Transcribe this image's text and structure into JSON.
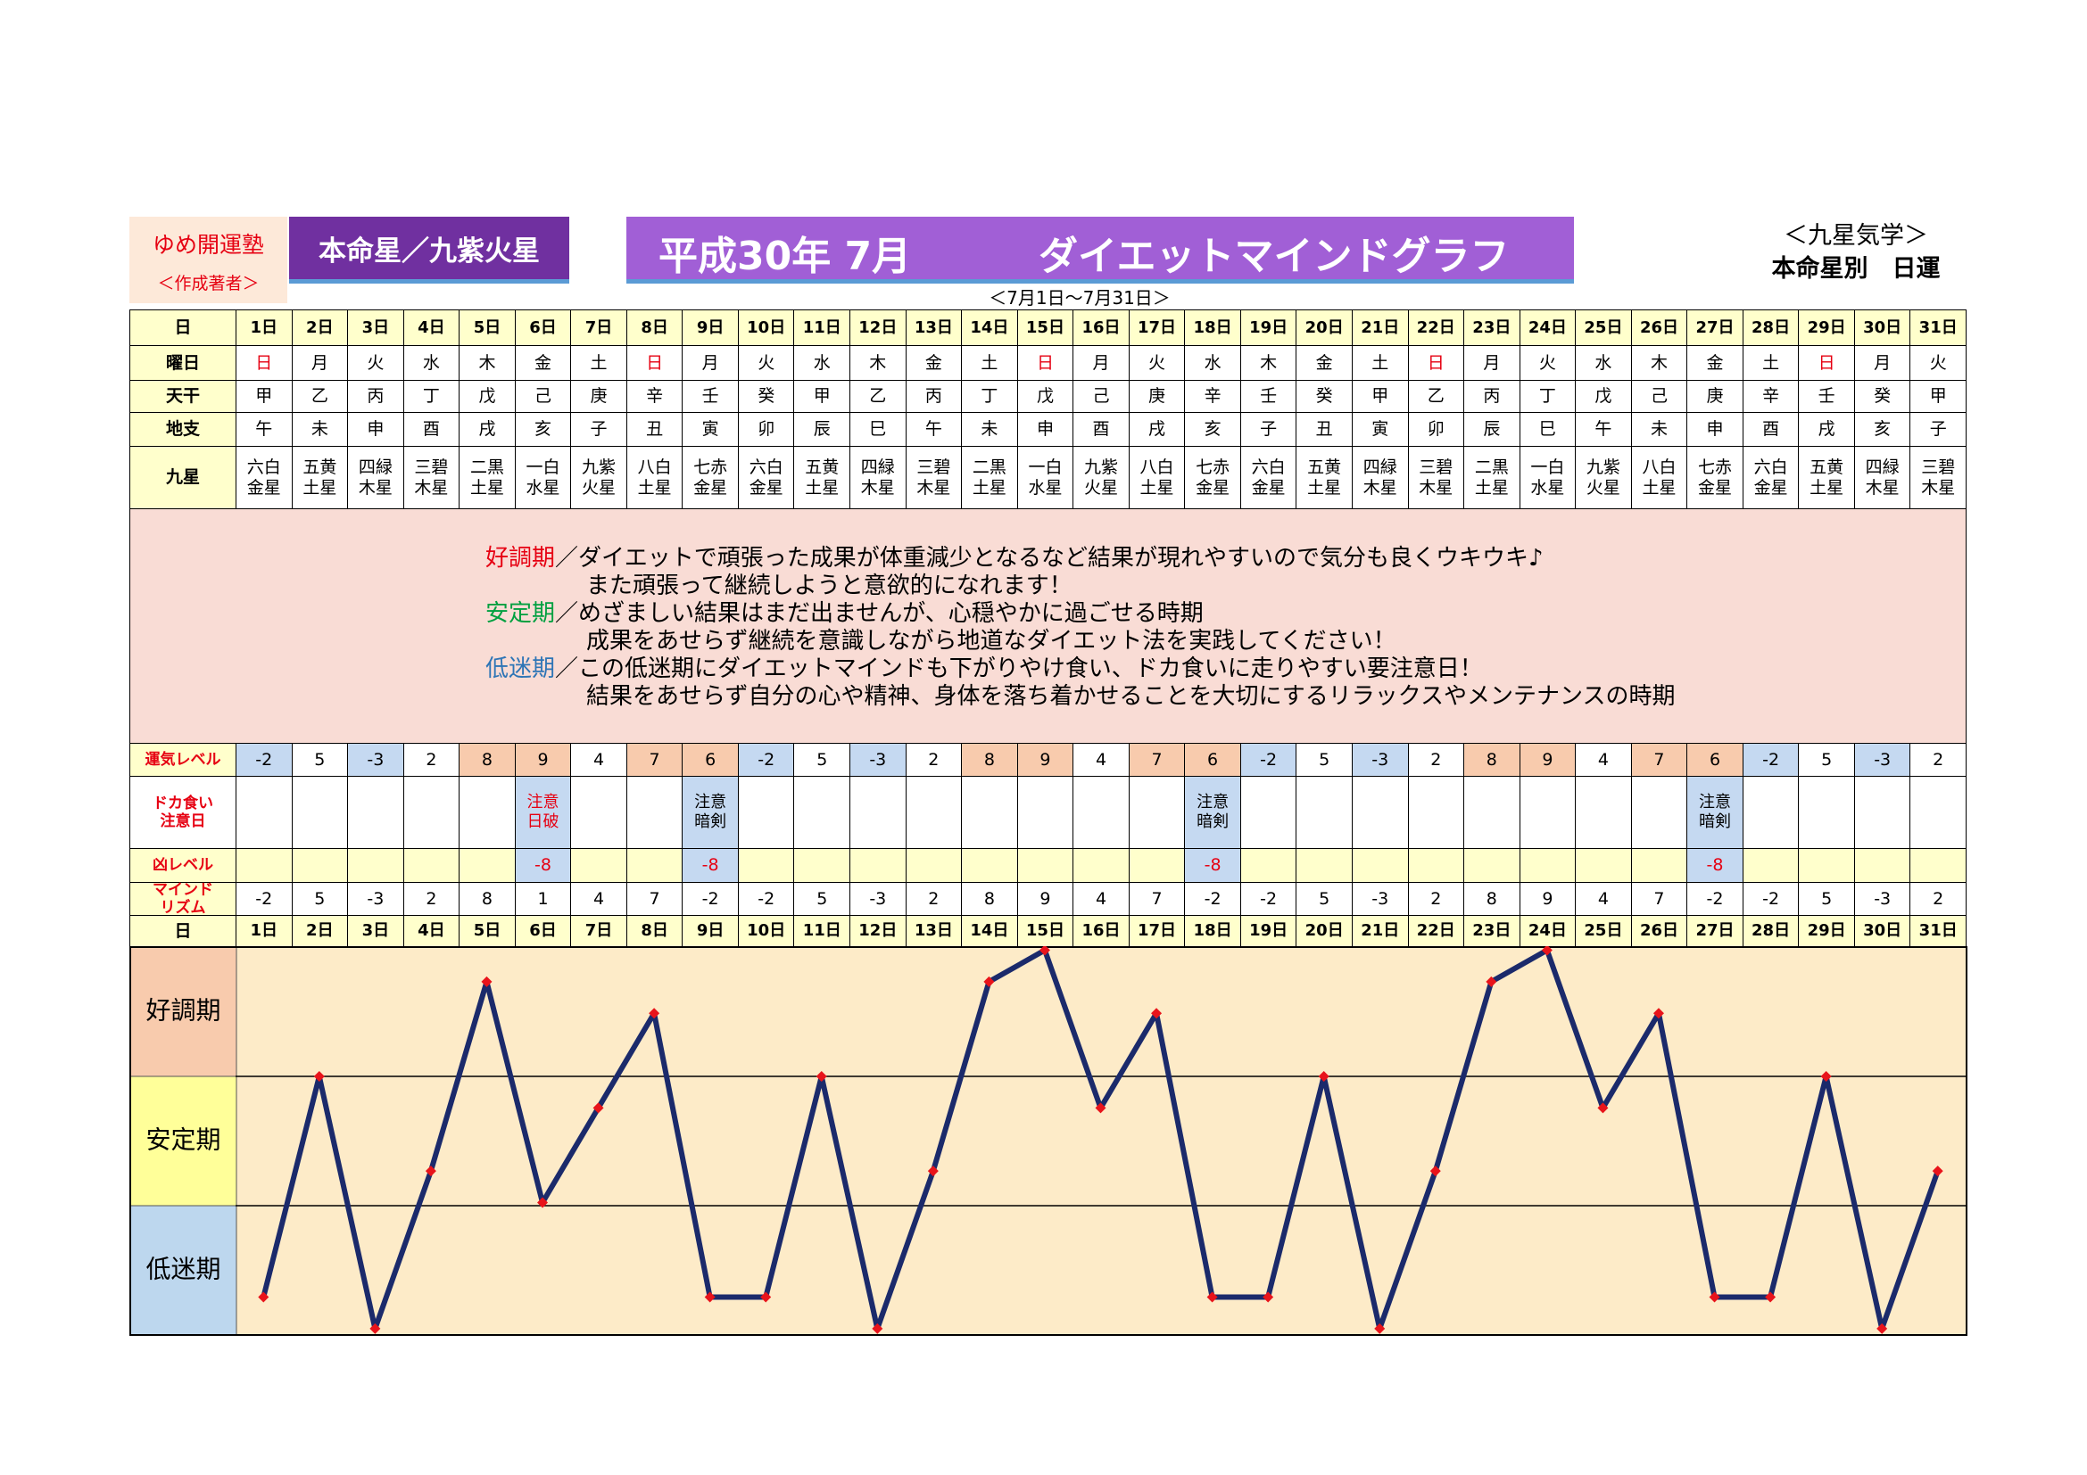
{
  "header": {
    "school": "ゆめ開運塾",
    "author": "＜作成著者＞",
    "honmei": "本命星／九紫火星",
    "title_date": "平成30年 7月",
    "title": "ダイエットマインドグラフ",
    "period": "＜7月1日～7月31日＞",
    "system": "＜九星気学＞",
    "subtitle": "本命星別　日運"
  },
  "table": {
    "labels": {
      "day": "日",
      "weekday": "曜日",
      "kan": "天干",
      "shi": "地支",
      "star": "九星",
      "luck": "運気レベル",
      "doka": [
        "ドカ食い",
        "注意日"
      ],
      "kyo": "凶レベル",
      "mind": [
        "マインド",
        "リズム"
      ]
    },
    "days": [
      "1日",
      "2日",
      "3日",
      "4日",
      "5日",
      "6日",
      "7日",
      "8日",
      "9日",
      "10日",
      "11日",
      "12日",
      "13日",
      "14日",
      "15日",
      "16日",
      "17日",
      "18日",
      "19日",
      "20日",
      "21日",
      "22日",
      "23日",
      "24日",
      "25日",
      "26日",
      "27日",
      "28日",
      "29日",
      "30日",
      "31日"
    ],
    "weekdays": [
      "日",
      "月",
      "火",
      "水",
      "木",
      "金",
      "土",
      "日",
      "月",
      "火",
      "水",
      "木",
      "金",
      "土",
      "日",
      "月",
      "火",
      "水",
      "木",
      "金",
      "土",
      "日",
      "月",
      "火",
      "水",
      "木",
      "金",
      "土",
      "日",
      "月",
      "火"
    ],
    "kan": [
      "甲",
      "乙",
      "丙",
      "丁",
      "戊",
      "己",
      "庚",
      "辛",
      "壬",
      "癸",
      "甲",
      "乙",
      "丙",
      "丁",
      "戊",
      "己",
      "庚",
      "辛",
      "壬",
      "癸",
      "甲",
      "乙",
      "丙",
      "丁",
      "戊",
      "己",
      "庚",
      "辛",
      "壬",
      "癸",
      "甲"
    ],
    "shi": [
      "午",
      "未",
      "申",
      "酉",
      "戌",
      "亥",
      "子",
      "丑",
      "寅",
      "卯",
      "辰",
      "巳",
      "午",
      "未",
      "申",
      "酉",
      "戌",
      "亥",
      "子",
      "丑",
      "寅",
      "卯",
      "辰",
      "巳",
      "午",
      "未",
      "申",
      "酉",
      "戌",
      "亥",
      "子"
    ],
    "star": [
      [
        "六白",
        "金星"
      ],
      [
        "五黄",
        "土星"
      ],
      [
        "四緑",
        "木星"
      ],
      [
        "三碧",
        "木星"
      ],
      [
        "二黒",
        "土星"
      ],
      [
        "一白",
        "水星"
      ],
      [
        "九紫",
        "火星"
      ],
      [
        "八白",
        "土星"
      ],
      [
        "七赤",
        "金星"
      ],
      [
        "六白",
        "金星"
      ],
      [
        "五黄",
        "土星"
      ],
      [
        "四緑",
        "木星"
      ],
      [
        "三碧",
        "木星"
      ],
      [
        "二黒",
        "土星"
      ],
      [
        "一白",
        "水星"
      ],
      [
        "九紫",
        "火星"
      ],
      [
        "八白",
        "土星"
      ],
      [
        "七赤",
        "金星"
      ],
      [
        "六白",
        "金星"
      ],
      [
        "五黄",
        "土星"
      ],
      [
        "四緑",
        "木星"
      ],
      [
        "三碧",
        "木星"
      ],
      [
        "二黒",
        "土星"
      ],
      [
        "一白",
        "水星"
      ],
      [
        "九紫",
        "火星"
      ],
      [
        "八白",
        "土星"
      ],
      [
        "七赤",
        "金星"
      ],
      [
        "六白",
        "金星"
      ],
      [
        "五黄",
        "土星"
      ],
      [
        "四緑",
        "木星"
      ],
      [
        "三碧",
        "木星"
      ]
    ],
    "luck": [
      -2,
      5,
      -3,
      2,
      8,
      9,
      4,
      7,
      6,
      -2,
      5,
      -3,
      2,
      8,
      9,
      4,
      7,
      6,
      -2,
      5,
      -3,
      2,
      8,
      9,
      4,
      7,
      6,
      -2,
      5,
      -3,
      2
    ],
    "doka": [
      null,
      null,
      null,
      null,
      null,
      {
        "lines": [
          "注意",
          "日破"
        ],
        "color": "#e60012"
      },
      null,
      null,
      {
        "lines": [
          "注意",
          "暗剣"
        ],
        "color": "#000000"
      },
      null,
      null,
      null,
      null,
      null,
      null,
      null,
      null,
      {
        "lines": [
          "注意",
          "暗剣"
        ],
        "color": "#000000"
      },
      null,
      null,
      null,
      null,
      null,
      null,
      null,
      null,
      {
        "lines": [
          "注意",
          "暗剣"
        ],
        "color": "#000000"
      },
      null,
      null,
      null,
      null
    ],
    "kyo": [
      null,
      null,
      null,
      null,
      null,
      -8,
      null,
      null,
      -8,
      null,
      null,
      null,
      null,
      null,
      null,
      null,
      null,
      -8,
      null,
      null,
      null,
      null,
      null,
      null,
      null,
      null,
      -8,
      null,
      null,
      null,
      null
    ],
    "mind": [
      -2,
      5,
      -3,
      2,
      8,
      1,
      4,
      7,
      -2,
      -2,
      5,
      -3,
      2,
      8,
      9,
      4,
      7,
      -2,
      -2,
      5,
      -3,
      2,
      8,
      9,
      4,
      7,
      -2,
      -2,
      5,
      -3,
      2
    ],
    "sunday_color": "#e60012",
    "low_color": "#c5d9f1",
    "high_color": "#f8cbad",
    "head_color": "#ffffcc"
  },
  "legend": [
    {
      "label": "好調期",
      "color": "#e60012",
      "lines": [
        "／ダイエットで頑張った成果が体重減少となるなど結果が現れやすいので気分も良くウキウキ♪",
        "また頑張って継続しようと意欲的になれます！"
      ]
    },
    {
      "label": "安定期",
      "color": "#00a040",
      "lines": [
        "／めざましい結果はまだ出ませんが、心穏やかに過ごせる時期",
        "成果をあせらず継続を意識しながら地道なダイエット法を実践してください！"
      ]
    },
    {
      "label": "低迷期",
      "color": "#2e75b6",
      "lines": [
        "／この低迷期にダイエットマインドも下がりやけ食い、ドカ食いに走りやすい要注意日！",
        "結果をあせらず自分の心や精神、身体を落ち着かせることを大切にするリラックスやメンテナンスの時期"
      ]
    }
  ],
  "chart_data": {
    "type": "line",
    "ylim": [
      -3.2,
      9.1
    ],
    "color": "#1b2a6b",
    "marker_color": "#e8141b",
    "band_colors": [
      "#f8cbad",
      "#ffff99",
      "#bdd7ee"
    ],
    "background": "#fdebc8"
  }
}
